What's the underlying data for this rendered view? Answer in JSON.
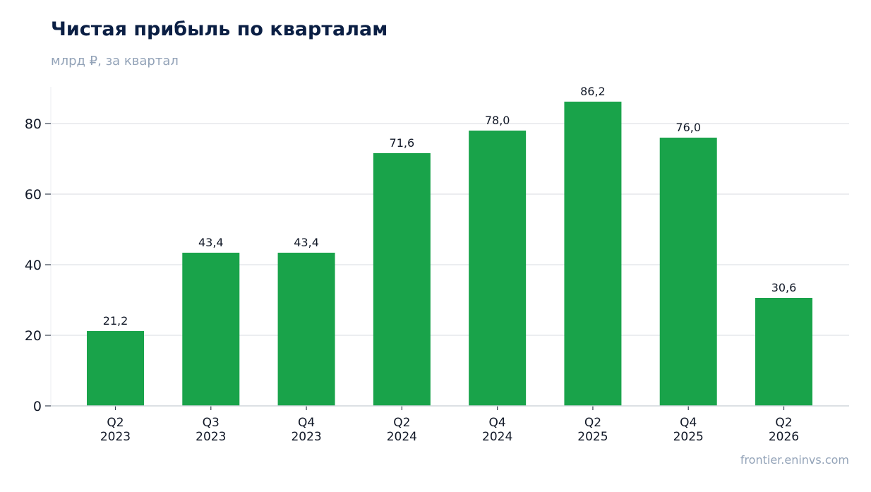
{
  "header": {
    "title": "Чистая прибыль по кварталам",
    "subtitle": "млрд ₽, за квартал"
  },
  "footer": {
    "source": "frontier.eninvs.com"
  },
  "chart_data": {
    "type": "bar",
    "title": "Чистая прибыль по кварталам",
    "subtitle": "млрд ₽, за квартал",
    "categories": [
      "Q2\n2023",
      "Q3\n2023",
      "Q4\n2023",
      "Q2\n2024",
      "Q4\n2024",
      "Q2\n2025",
      "Q4\n2025",
      "Q2\n2026"
    ],
    "values": [
      21.2,
      43.4,
      43.4,
      71.6,
      78.0,
      86.2,
      76.0,
      30.6
    ],
    "value_labels": [
      "21,2",
      "43,4",
      "43,4",
      "71,6",
      "78,0",
      "86,2",
      "76,0",
      "30,6"
    ],
    "xlabel": "",
    "ylabel": "",
    "ylim": [
      0,
      90
    ],
    "yticks": [
      0,
      20,
      40,
      60,
      80
    ],
    "grid": true,
    "bar_color": "#19a34a",
    "grid_color": "#e5e7eb",
    "axis_color": "#d1d5db"
  }
}
